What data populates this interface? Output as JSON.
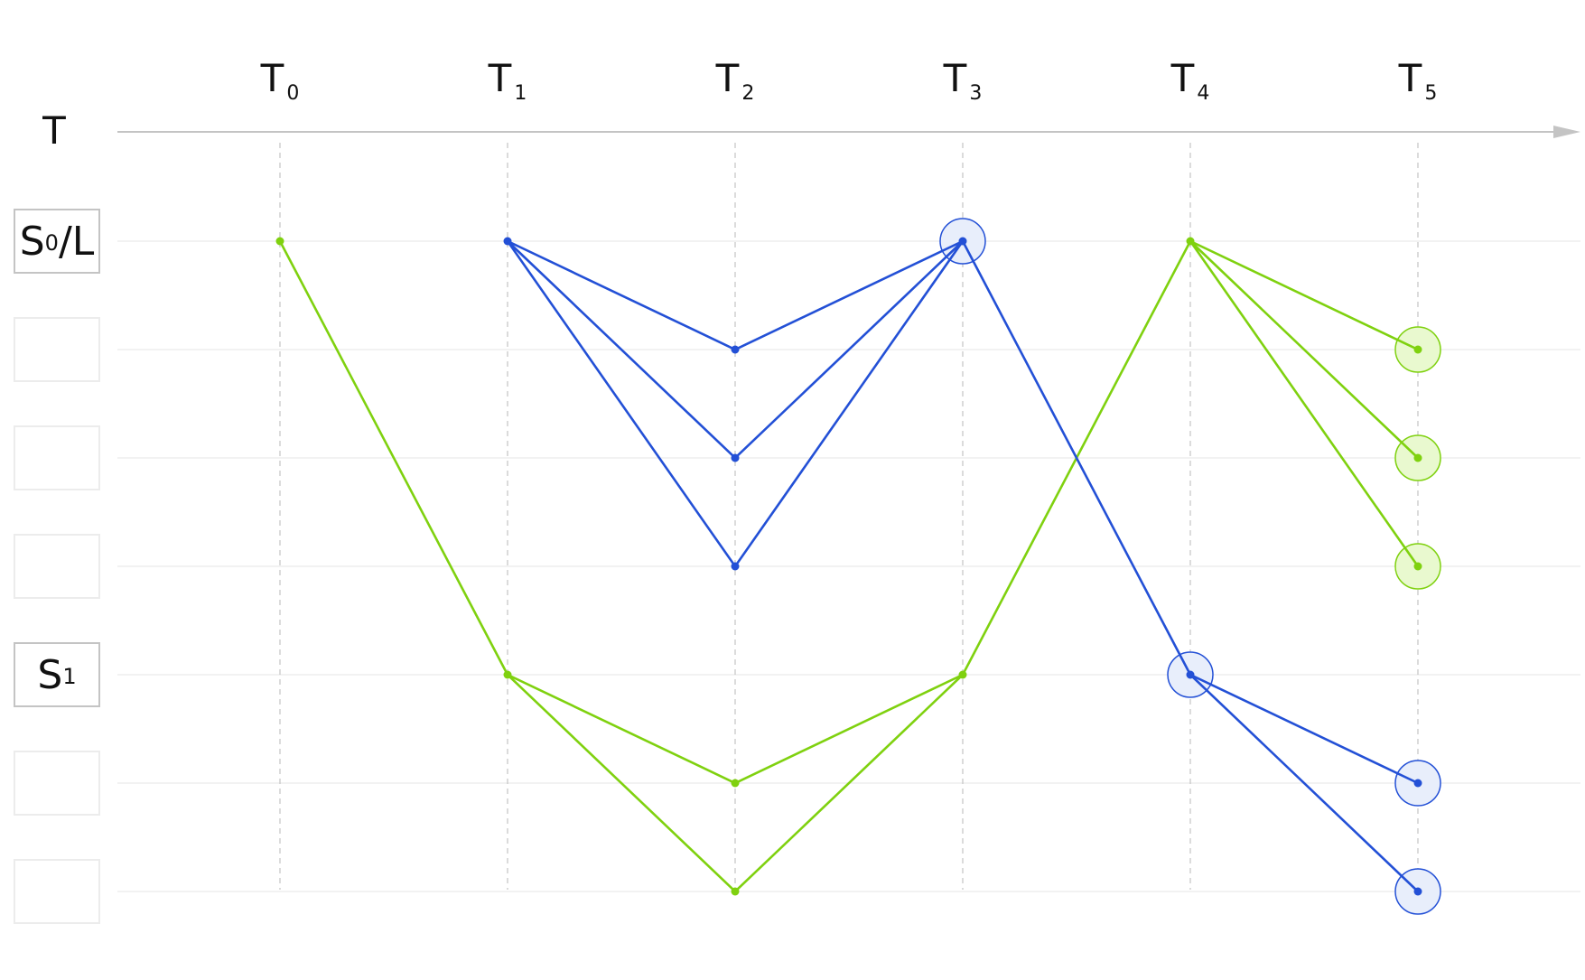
{
  "time_axis": {
    "name": "T",
    "columns": [
      {
        "base": "T",
        "sub": "0"
      },
      {
        "base": "T",
        "sub": "1"
      },
      {
        "base": "T",
        "sub": "2"
      },
      {
        "base": "T",
        "sub": "3"
      },
      {
        "base": "T",
        "sub": "4"
      },
      {
        "base": "T",
        "sub": "5"
      }
    ]
  },
  "state_rows": [
    {
      "base": "S",
      "sub": "0",
      "suffix": "/L"
    },
    {
      "base": "",
      "sub": "",
      "suffix": ""
    },
    {
      "base": "",
      "sub": "",
      "suffix": ""
    },
    {
      "base": "",
      "sub": "",
      "suffix": ""
    },
    {
      "base": "S",
      "sub": "1",
      "suffix": ""
    },
    {
      "base": "",
      "sub": "",
      "suffix": ""
    },
    {
      "base": "",
      "sub": "",
      "suffix": ""
    }
  ],
  "colors": {
    "blue": "#2350d6",
    "green": "#7fd10f",
    "blue_fill": "#e8eefb",
    "green_fill": "#e9f9cf",
    "grid": "#ededed",
    "dash": "#c8c8c8",
    "axis": "#c4c4c4"
  },
  "paths": [
    {
      "color": "green",
      "points": [
        [
          0,
          0
        ],
        [
          1,
          4
        ]
      ]
    },
    {
      "color": "green",
      "points": [
        [
          1,
          4
        ],
        [
          2,
          5
        ],
        [
          3,
          4
        ]
      ]
    },
    {
      "color": "green",
      "points": [
        [
          1,
          4
        ],
        [
          2,
          6
        ],
        [
          3,
          4
        ]
      ]
    },
    {
      "color": "green",
      "points": [
        [
          3,
          4
        ],
        [
          4,
          0
        ]
      ]
    },
    {
      "color": "green",
      "points": [
        [
          4,
          0
        ],
        [
          5,
          1
        ]
      ]
    },
    {
      "color": "green",
      "points": [
        [
          4,
          0
        ],
        [
          5,
          2
        ]
      ]
    },
    {
      "color": "green",
      "points": [
        [
          4,
          0
        ],
        [
          5,
          3
        ]
      ]
    },
    {
      "color": "blue",
      "points": [
        [
          1,
          0
        ],
        [
          2,
          1
        ],
        [
          3,
          0
        ]
      ]
    },
    {
      "color": "blue",
      "points": [
        [
          1,
          0
        ],
        [
          2,
          2
        ],
        [
          3,
          0
        ]
      ]
    },
    {
      "color": "blue",
      "points": [
        [
          1,
          0
        ],
        [
          2,
          3
        ],
        [
          3,
          0
        ]
      ]
    },
    {
      "color": "blue",
      "points": [
        [
          3,
          0
        ],
        [
          4,
          4
        ]
      ]
    },
    {
      "color": "blue",
      "points": [
        [
          4,
          4
        ],
        [
          5,
          5
        ]
      ]
    },
    {
      "color": "blue",
      "points": [
        [
          4,
          4
        ],
        [
          5,
          6
        ]
      ]
    }
  ],
  "highlighted_nodes": [
    {
      "color": "blue",
      "col": 3,
      "row": 0
    },
    {
      "color": "green",
      "col": 5,
      "row": 1
    },
    {
      "color": "green",
      "col": 5,
      "row": 2
    },
    {
      "color": "green",
      "col": 5,
      "row": 3
    },
    {
      "color": "blue",
      "col": 4,
      "row": 4
    },
    {
      "color": "blue",
      "col": 5,
      "row": 5
    },
    {
      "color": "blue",
      "col": 5,
      "row": 6
    }
  ]
}
